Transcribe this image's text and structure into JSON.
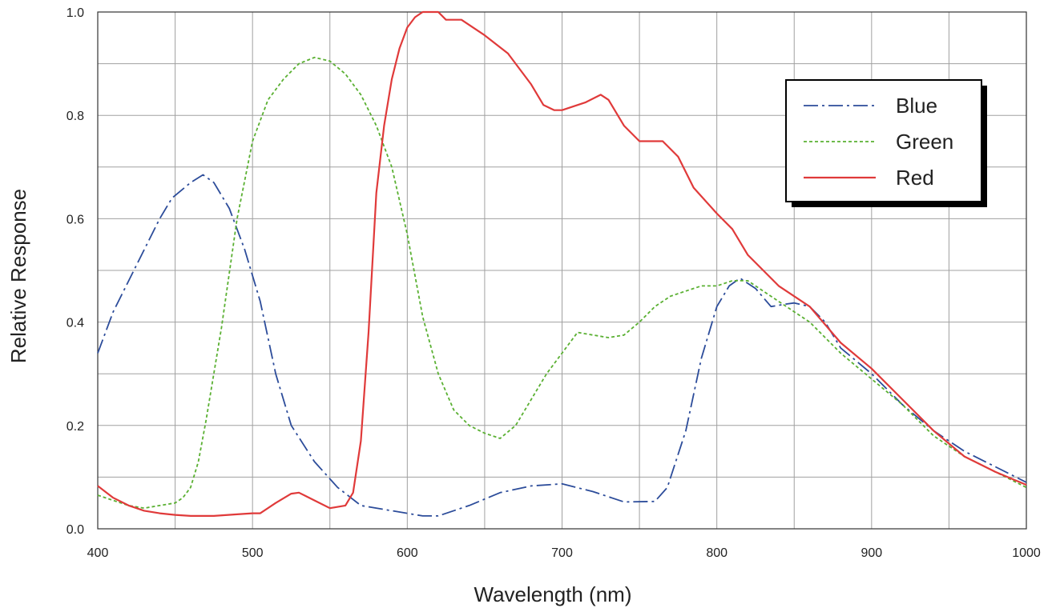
{
  "chart_data": {
    "type": "line",
    "xlabel": "Wavelength (nm)",
    "ylabel": "Relative Response",
    "xlim": [
      400,
      1000
    ],
    "ylim": [
      0.0,
      1.0
    ],
    "x_ticks": [
      "400",
      "500",
      "600",
      "700",
      "800",
      "900",
      "1000"
    ],
    "y_ticks": [
      "0.0",
      "0.2",
      "0.4",
      "0.6",
      "0.8",
      "1.0"
    ],
    "grid": true,
    "legend_position": "top-right",
    "series": [
      {
        "name": "Blue",
        "color": "#2c4c9a",
        "dash": "dash-dot",
        "x": [
          400,
          410,
          425,
          440,
          448,
          460,
          468,
          475,
          485,
          495,
          505,
          515,
          525,
          540,
          555,
          570,
          590,
          610,
          620,
          640,
          660,
          680,
          700,
          720,
          740,
          760,
          768,
          780,
          790,
          800,
          808,
          815,
          825,
          835,
          845,
          850,
          860,
          870,
          880,
          900,
          920,
          940,
          960,
          980,
          1000
        ],
        "y": [
          0.34,
          0.42,
          0.51,
          0.6,
          0.64,
          0.67,
          0.685,
          0.67,
          0.62,
          0.54,
          0.44,
          0.3,
          0.2,
          0.13,
          0.08,
          0.045,
          0.035,
          0.025,
          0.025,
          0.045,
          0.07,
          0.083,
          0.087,
          0.072,
          0.052,
          0.053,
          0.08,
          0.19,
          0.33,
          0.43,
          0.47,
          0.485,
          0.465,
          0.43,
          0.435,
          0.437,
          0.43,
          0.4,
          0.35,
          0.3,
          0.24,
          0.19,
          0.15,
          0.12,
          0.09
        ]
      },
      {
        "name": "Green",
        "color": "#5ab032",
        "dash": "dotted",
        "x": [
          400,
          410,
          420,
          430,
          440,
          450,
          455,
          460,
          465,
          470,
          480,
          490,
          500,
          510,
          520,
          530,
          540,
          550,
          560,
          570,
          580,
          590,
          600,
          610,
          620,
          630,
          640,
          650,
          660,
          670,
          680,
          690,
          700,
          710,
          720,
          730,
          740,
          750,
          760,
          770,
          780,
          790,
          800,
          810,
          820,
          840,
          860,
          880,
          900,
          920,
          940,
          960,
          980,
          1000
        ],
        "y": [
          0.065,
          0.055,
          0.045,
          0.04,
          0.045,
          0.05,
          0.06,
          0.08,
          0.13,
          0.21,
          0.39,
          0.6,
          0.75,
          0.83,
          0.87,
          0.9,
          0.912,
          0.905,
          0.88,
          0.84,
          0.78,
          0.7,
          0.57,
          0.41,
          0.3,
          0.23,
          0.2,
          0.185,
          0.175,
          0.2,
          0.25,
          0.3,
          0.34,
          0.38,
          0.375,
          0.37,
          0.375,
          0.4,
          0.43,
          0.45,
          0.46,
          0.47,
          0.47,
          0.48,
          0.48,
          0.44,
          0.4,
          0.34,
          0.29,
          0.24,
          0.18,
          0.14,
          0.11,
          0.08
        ]
      },
      {
        "name": "Red",
        "color": "#e03a3a",
        "dash": "solid",
        "x": [
          400,
          410,
          420,
          430,
          440,
          450,
          460,
          475,
          490,
          500,
          505,
          515,
          525,
          530,
          540,
          550,
          560,
          565,
          570,
          575,
          580,
          585,
          590,
          595,
          600,
          605,
          610,
          620,
          625,
          635,
          650,
          665,
          680,
          688,
          695,
          700,
          715,
          725,
          730,
          740,
          750,
          765,
          775,
          785,
          800,
          810,
          820,
          830,
          840,
          860,
          880,
          900,
          920,
          940,
          960,
          980,
          1000
        ],
        "y": [
          0.083,
          0.06,
          0.045,
          0.035,
          0.03,
          0.027,
          0.025,
          0.025,
          0.028,
          0.03,
          0.03,
          0.05,
          0.068,
          0.07,
          0.055,
          0.04,
          0.045,
          0.07,
          0.17,
          0.38,
          0.65,
          0.78,
          0.87,
          0.93,
          0.97,
          0.99,
          1.0,
          1.0,
          0.985,
          0.985,
          0.955,
          0.92,
          0.86,
          0.82,
          0.81,
          0.81,
          0.825,
          0.84,
          0.83,
          0.78,
          0.75,
          0.75,
          0.72,
          0.66,
          0.61,
          0.58,
          0.53,
          0.5,
          0.47,
          0.43,
          0.36,
          0.31,
          0.25,
          0.19,
          0.14,
          0.11,
          0.085
        ]
      }
    ]
  }
}
